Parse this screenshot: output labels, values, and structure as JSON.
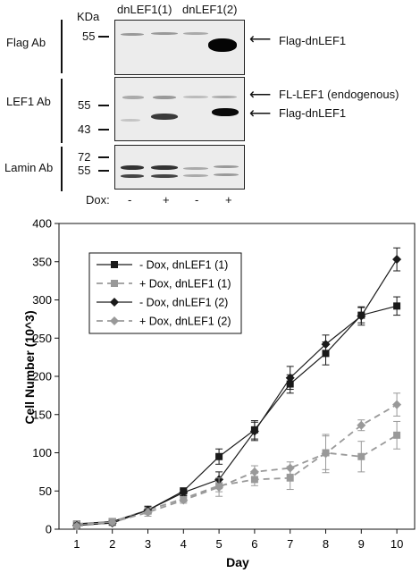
{
  "blot": {
    "kda_label": "KDa",
    "lane_groups": [
      "dnLEF1(1)",
      "dnLEF1(2)"
    ],
    "dox_label": "Dox:",
    "dox_signs": [
      "-",
      "+",
      "-",
      "+"
    ],
    "panels": [
      {
        "name": "Flag Ab",
        "markers": [
          "55"
        ],
        "annotations": [
          "Flag-dnLEF1"
        ]
      },
      {
        "name": "LEF1 Ab",
        "markers": [
          "55",
          "43"
        ],
        "annotations": [
          "FL-LEF1 (endogenous)",
          "Flag-dnLEF1"
        ]
      },
      {
        "name": "Lamin Ab",
        "markers": [
          "72",
          "55"
        ],
        "annotations": []
      }
    ]
  },
  "chart_data": {
    "type": "line",
    "xlabel": "Day",
    "ylabel": "Cell Number (10^3)",
    "x": [
      1,
      2,
      3,
      4,
      5,
      6,
      7,
      8,
      9,
      10
    ],
    "xlim": [
      0.5,
      10.5
    ],
    "ylim": [
      0,
      400
    ],
    "yticks": [
      0,
      50,
      100,
      150,
      200,
      250,
      300,
      350,
      400
    ],
    "grid": false,
    "legend_position": "upper-left",
    "series": [
      {
        "name": "- Dox, dnLEF1 (1)",
        "color": "#1a1a1a",
        "dashed": false,
        "marker": "square",
        "values": [
          7,
          10,
          25,
          50,
          95,
          130,
          190,
          230,
          280,
          292
        ],
        "errors": [
          3,
          3,
          5,
          4,
          10,
          12,
          12,
          15,
          10,
          12
        ]
      },
      {
        "name": "+ Dox, dnLEF1 (1)",
        "color": "#999999",
        "dashed": true,
        "marker": "square",
        "values": [
          7,
          10,
          25,
          40,
          57,
          65,
          67,
          100,
          95,
          123
        ],
        "errors": [
          3,
          3,
          5,
          4,
          8,
          8,
          15,
          22,
          20,
          18
        ]
      },
      {
        "name": "- Dox, dnLEF1 (2)",
        "color": "#1a1a1a",
        "dashed": false,
        "marker": "diamond",
        "values": [
          5,
          8,
          25,
          48,
          65,
          128,
          198,
          242,
          279,
          353
        ],
        "errors": [
          3,
          3,
          5,
          4,
          10,
          12,
          15,
          12,
          12,
          15
        ]
      },
      {
        "name": "+ Dox, dnLEF1 (2)",
        "color": "#999999",
        "dashed": true,
        "marker": "diamond",
        "values": [
          4,
          9,
          22,
          38,
          55,
          75,
          80,
          99,
          136,
          163
        ],
        "errors": [
          3,
          3,
          5,
          4,
          12,
          8,
          8,
          25,
          7,
          15
        ]
      }
    ]
  }
}
